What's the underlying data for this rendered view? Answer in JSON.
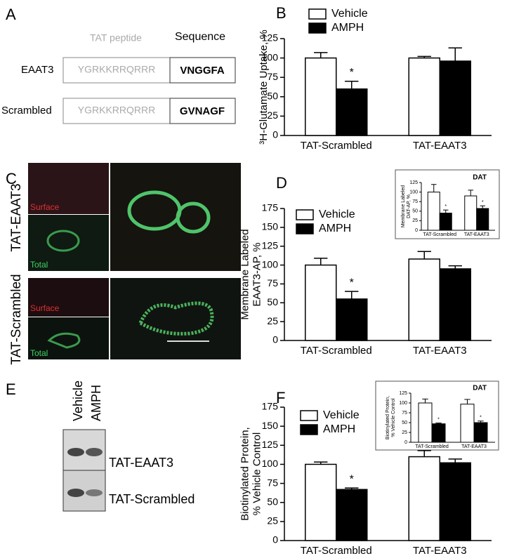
{
  "panel_labels": [
    "A",
    "B",
    "C",
    "D",
    "E",
    "F"
  ],
  "panel_a": {
    "header": [
      "TAT peptide",
      "Sequence"
    ],
    "rows": [
      [
        "EAAT3",
        "YGRKKRRQRRR",
        "VNGGFA"
      ],
      [
        "Scrambled",
        "YGRKKRRQRRR",
        "GVNAGF"
      ]
    ]
  },
  "panel_c": {
    "rows": [
      "TAT-EAAT3",
      "TAT-Scrambled"
    ],
    "channels": [
      "Surface",
      "Total"
    ]
  },
  "panel_e": {
    "lanes": [
      "Vehicle",
      "AMPH"
    ],
    "bands": [
      "TAT-EAAT3",
      "TAT-Scrambled"
    ]
  },
  "chart_data": [
    {
      "type": "bar",
      "ylabel": [
        "³H-Glutamate Uptake, %"
      ],
      "categories": [
        "TAT-Scrambled",
        "TAT-EAAT3"
      ],
      "series": [
        {
          "name": "Vehicle",
          "color": "#ffffff",
          "values": [
            100,
            100
          ],
          "errors": [
            7,
            2
          ]
        },
        {
          "name": "AMPH",
          "color": "#000000",
          "values": [
            60,
            96
          ],
          "errors": [
            10,
            17
          ]
        }
      ],
      "ylim": [
        0,
        125
      ],
      "yticks": [
        0,
        25,
        50,
        75,
        100,
        125
      ],
      "annotations": [
        "*"
      ]
    },
    {
      "type": "bar",
      "ylabel": [
        "Membrane Labeled",
        "EAAT3-AP, %"
      ],
      "categories": [
        "TAT-Scrambled",
        "TAT-EAAT3"
      ],
      "series": [
        {
          "name": "Vehicle",
          "color": "#ffffff",
          "values": [
            100,
            108
          ],
          "errors": [
            9,
            10
          ]
        },
        {
          "name": "AMPH",
          "color": "#000000",
          "values": [
            55,
            95
          ],
          "errors": [
            10,
            4
          ]
        }
      ],
      "ylim": [
        0,
        175
      ],
      "yticks": [
        0,
        25,
        50,
        75,
        100,
        125,
        150,
        175
      ],
      "annotations": [
        "*"
      ]
    },
    {
      "type": "bar",
      "title": "DAT",
      "ylabel": [
        "Membrane Labeled",
        "DAT-AP, %"
      ],
      "categories": [
        "TAT-Scrambled",
        "TAT-EAAT3"
      ],
      "series": [
        {
          "color": "#ffffff",
          "values": [
            100,
            90
          ],
          "errors": [
            20,
            15
          ]
        },
        {
          "color": "#000000",
          "values": [
            45,
            57
          ],
          "errors": [
            8,
            7
          ]
        }
      ],
      "ylim": [
        0,
        125
      ],
      "yticks": [
        0,
        25,
        50,
        75,
        100,
        125
      ],
      "annotations": [
        "*",
        "*"
      ]
    },
    {
      "type": "bar",
      "ylabel": [
        "Biotinylated Protein,",
        "% Vehicle Control"
      ],
      "categories": [
        "TAT-Scrambled",
        "TAT-EAAT3"
      ],
      "series": [
        {
          "name": "Vehicle",
          "color": "#ffffff",
          "values": [
            100,
            110
          ],
          "errors": [
            3,
            8
          ]
        },
        {
          "name": "AMPH",
          "color": "#000000",
          "values": [
            67,
            102
          ],
          "errors": [
            2,
            5
          ]
        }
      ],
      "ylim": [
        0,
        175
      ],
      "yticks": [
        0,
        25,
        50,
        75,
        100,
        125,
        150,
        175
      ],
      "annotations": [
        "*"
      ]
    },
    {
      "type": "bar",
      "title": "DAT",
      "ylabel": [
        "Biotinylated Protein,",
        "% Vehicle Control"
      ],
      "categories": [
        "TAT-Scrambled",
        "TAT-EAAT3"
      ],
      "series": [
        {
          "color": "#ffffff",
          "values": [
            100,
            97
          ],
          "errors": [
            10,
            12
          ]
        },
        {
          "color": "#000000",
          "values": [
            47,
            50
          ],
          "errors": [
            2,
            4
          ]
        }
      ],
      "ylim": [
        0,
        125
      ],
      "yticks": [
        0,
        25,
        50,
        75,
        100,
        125
      ],
      "annotations": [
        "*",
        "*"
      ]
    }
  ]
}
